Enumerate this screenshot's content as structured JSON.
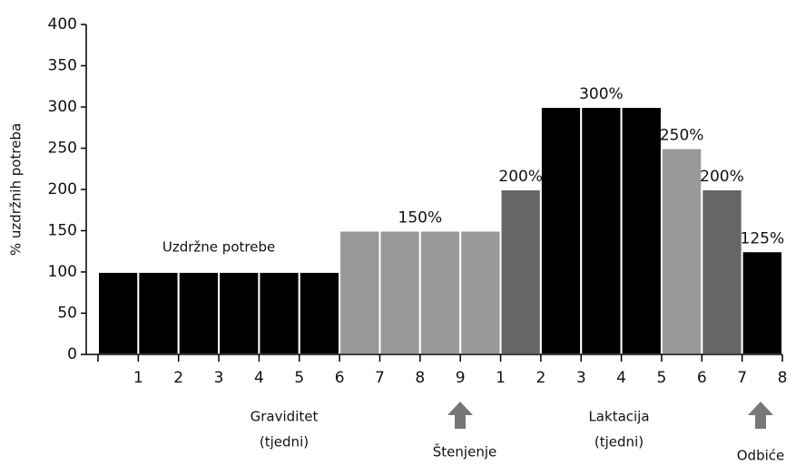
{
  "chart_data": {
    "type": "bar",
    "ylabel": "% uzdržnih potreba",
    "categories": [
      "1",
      "2",
      "3",
      "4",
      "5",
      "6",
      "7",
      "8",
      "9",
      "1",
      "2",
      "3",
      "4",
      "5",
      "6",
      "7",
      "8"
    ],
    "values": [
      100,
      100,
      100,
      100,
      100,
      100,
      150,
      150,
      150,
      150,
      200,
      300,
      300,
      300,
      250,
      200,
      125
    ],
    "value_labels": [
      null,
      null,
      null,
      null,
      null,
      null,
      "150%",
      null,
      null,
      null,
      "200%",
      "300%",
      null,
      null,
      "250%",
      "200%",
      "125%"
    ],
    "colors": [
      "#000000",
      "#000000",
      "#000000",
      "#000000",
      "#000000",
      "#000000",
      "#999999",
      "#999999",
      "#999999",
      "#999999",
      "#666666",
      "#000000",
      "#000000",
      "#000000",
      "#999999",
      "#666666",
      "#000000"
    ],
    "annotations": [
      "Uzdržne potrebe"
    ],
    "group_labels": [
      [
        "Graviditet",
        "(tjedni)"
      ],
      [
        "Laktacija",
        "(tjedni)"
      ]
    ],
    "events": [
      "Štenjenje",
      "Odbiće"
    ],
    "ylim": [
      0,
      400
    ],
    "yticks": [
      0,
      50,
      100,
      150,
      200,
      250,
      300,
      350,
      400
    ]
  }
}
